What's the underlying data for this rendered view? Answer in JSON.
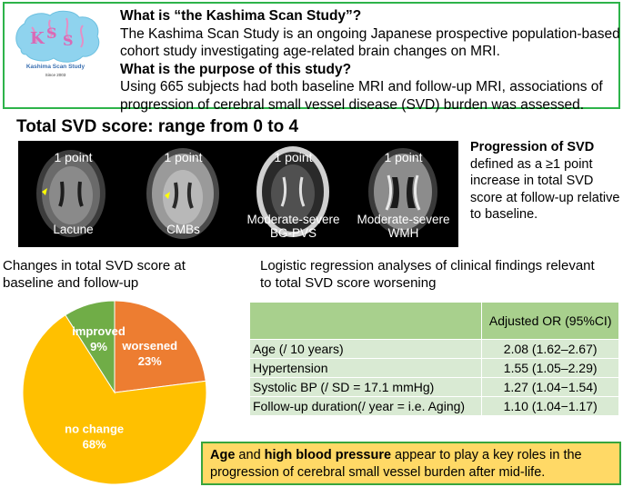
{
  "intro": {
    "logo_text": "Kashima Scan Study",
    "logo_sub": "Since 2003",
    "q1": "What is “the Kashima Scan Study”?",
    "a1": "The Kashima Scan Study is an ongoing Japanese prospective population-based cohort study investigating age-related brain changes on MRI.",
    "q2": "What is the purpose of this study?",
    "a2": "Using 665 subjects had both baseline MRI and follow-up MRI, associations of progression of cerebral small vessel disease (SVD) burden was assessed."
  },
  "section_title": "Total SVD score: range from 0 to 4",
  "mri": [
    {
      "point": "1 point",
      "label": "Lacune"
    },
    {
      "point": "1 point",
      "label": "CMBs"
    },
    {
      "point": "1 point",
      "label": "Moderate-severe BG-PVS"
    },
    {
      "point": "1 point",
      "label": "Moderate-severe WMH"
    }
  ],
  "progression": {
    "title": "Progression of SVD",
    "text": "defined as a ≥1 point increase in total SVD score at follow-up relative to baseline."
  },
  "changes_title": "Changes in total SVD score at baseline and follow-up",
  "lr_title": "Logistic regression analyses of clinical findings relevant to total SVD score worsening",
  "chart_data": {
    "type": "pie",
    "title": "Changes in total SVD score at baseline and follow-up",
    "slices": [
      {
        "label": "worsened",
        "value": 23,
        "value_label": "23%",
        "color": "#ed7d31"
      },
      {
        "label": "no change",
        "value": 68,
        "value_label": "68%",
        "color": "#ffc000"
      },
      {
        "label": "improved",
        "value": 9,
        "value_label": "9%",
        "color": "#70ad47"
      }
    ]
  },
  "table": {
    "header": [
      "",
      "Adjusted OR (95%CI)"
    ],
    "rows": [
      {
        "factor": "Age (/ 10 years)",
        "or": "2.08 (1.62–2.67)"
      },
      {
        "factor": "Hypertension",
        "or": "1.55 (1.05–2.29)"
      },
      {
        "factor": "Systolic BP (/ SD = 17.1 mmHg)",
        "or": "1.27 (1.04−1.54)"
      },
      {
        "factor": "Follow-up duration(/ year = i.e. Aging)",
        "or": "1.10 (1.04−1.17)"
      }
    ]
  },
  "conclusion": {
    "b1": "Age",
    "t1": " and ",
    "b2": "high blood pressure",
    "t2": " appear to play a key roles in the progression of cerebral small vessel burden after mid-life."
  }
}
